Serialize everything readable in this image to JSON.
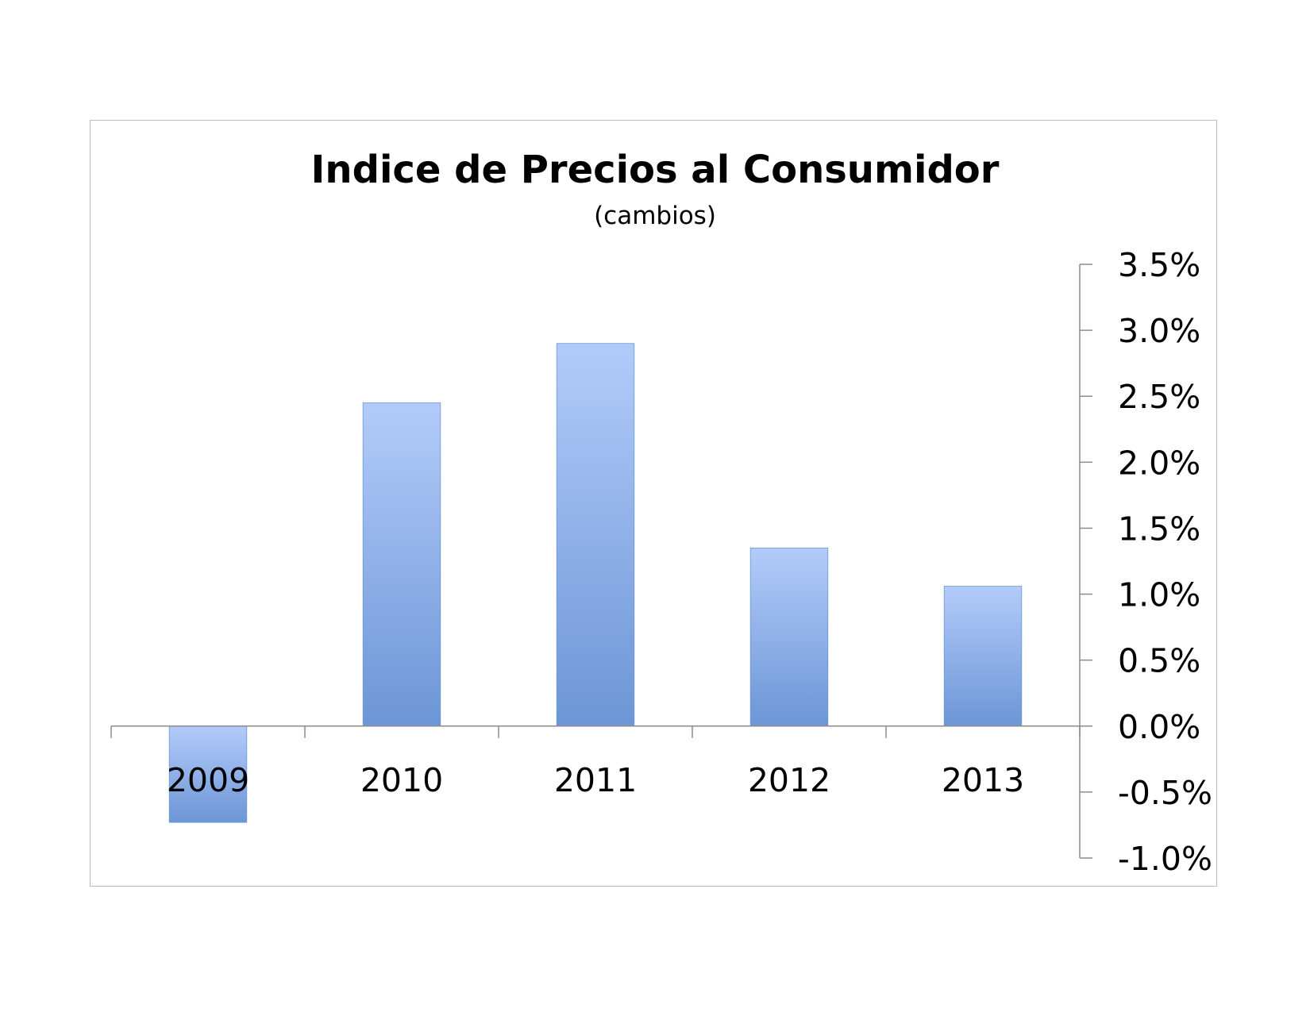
{
  "chart_data": {
    "type": "bar",
    "title": "Indice de Precios al Consumidor",
    "subtitle": "(cambios)",
    "categories": [
      "2009",
      "2010",
      "2011",
      "2012",
      "2013"
    ],
    "values": [
      -0.73,
      2.45,
      2.9,
      1.35,
      1.06
    ],
    "ylim": [
      -1.0,
      3.5
    ],
    "y_ticks": [
      "3.5%",
      "3.0%",
      "2.5%",
      "2.0%",
      "1.5%",
      "1.0%",
      "0.5%",
      "0.0%",
      "-0.5%",
      "-1.0%"
    ],
    "y_axis_position": "right",
    "grid": false,
    "legend": "none",
    "bar_color_top": "#b3cbfa",
    "bar_color_bottom": "#6c96d6"
  }
}
